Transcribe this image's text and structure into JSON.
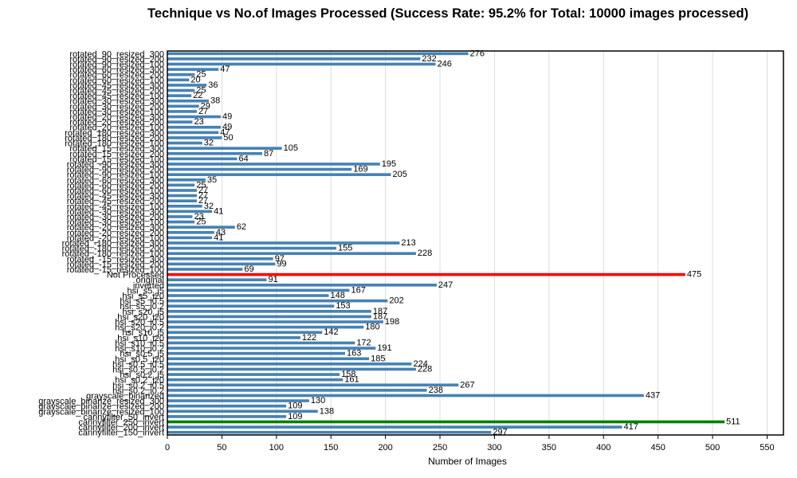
{
  "chart_data": {
    "type": "bar",
    "orientation": "horizontal",
    "title": "Technique vs No.of Images Processed (Success Rate: 95.2% for Total: 10000 images processed)",
    "xlabel": "Number of Images",
    "ylabel": "",
    "xlim": [
      0,
      565
    ],
    "xticks": [
      0,
      50,
      100,
      150,
      200,
      250,
      300,
      350,
      400,
      450,
      500,
      550
    ],
    "grid": "vertical",
    "default_color": "#4682b4",
    "highlight_colors": {
      "Not Processed": "#ff0000",
      "cannyfilter_250_invert": "#008000"
    },
    "categories": [
      "rotated_90_resized_300",
      "rotated_90_resized_200",
      "rotated_90_resized_100",
      "rotated_60_resized_300",
      "rotated_60_resized_200",
      "rotated_60_resized_100",
      "rotated_45_resized_300",
      "rotated_45_resized_200",
      "rotated_45_resized_100",
      "rotated_30_resized_300",
      "rotated_30_resized_200",
      "rotated_30_resized_100",
      "rotated_20_resized_300",
      "rotated_20_resized_200",
      "rotated_20_resized_100",
      "rotated_180_resized_300",
      "rotated_180_resized_200",
      "rotated_180_resized_100",
      "rotated_15_resized_300",
      "rotated_15_resized_200",
      "rotated_15_resized_100",
      "rotated_-90_resized_300",
      "rotated_-90_resized_200",
      "rotated_-90_resized_100",
      "rotated_-60_resized_300",
      "rotated_-60_resized_200",
      "rotated_-60_resized_100",
      "rotated_-45_resized_300",
      "rotated_-45_resized_200",
      "rotated_-45_resized_100",
      "rotated_-30_resized_300",
      "rotated_-30_resized_200",
      "rotated_-30_resized_100",
      "rotated_-20_resized_300",
      "rotated_-20_resized_200",
      "rotated_-20_resized_100",
      "rotated_-180_resized_300",
      "rotated_-180_resized_200",
      "rotated_-180_resized_100",
      "rotated_-15_resized_300",
      "rotated_-15_resized_200",
      "rotated_-15_resized_100",
      "Not Processed",
      "original",
      "inverted",
      "hsi_s5_i5",
      "hsi_s5_i20",
      "hsi_s5_i0.5",
      "hsi_s5_i0.2",
      "hsi_s20_i5",
      "hsi_s20_i20",
      "hsi_s20_i0.5",
      "hsi_s20_i0.2",
      "hsi_s10_i5",
      "hsi_s10_i20",
      "hsi_s10_i0.5",
      "hsi_s10_i0.2",
      "hsi_s0.5_i5",
      "hsi_s0.5_i20",
      "hsi_s0.5_i0.5",
      "hsi_s0.5_i0.2",
      "hsi_s0.2_i5",
      "hsi_s0.2_i20",
      "hsi_s0.2_i0.5",
      "hsi_s0.2_i0.2",
      "grayscale_binarized",
      "grayscale_binarize_resized_300",
      "grayscale_binarize_resized_200",
      "grayscale_binarize_resized_100",
      "cannyfilter_50_invert",
      "cannyfilter_250_invert",
      "cannyfilter_200_invert",
      "cannyfilter_150_invert"
    ],
    "values": [
      276,
      232,
      246,
      47,
      25,
      20,
      36,
      25,
      22,
      38,
      29,
      27,
      49,
      23,
      49,
      47,
      50,
      32,
      105,
      87,
      64,
      195,
      169,
      205,
      35,
      25,
      27,
      27,
      27,
      32,
      41,
      23,
      25,
      62,
      43,
      41,
      213,
      155,
      228,
      97,
      99,
      69,
      475,
      91,
      247,
      167,
      148,
      202,
      153,
      187,
      187,
      198,
      180,
      142,
      122,
      172,
      191,
      163,
      185,
      224,
      228,
      158,
      161,
      267,
      238,
      437,
      130,
      109,
      138,
      109,
      511,
      417,
      297
    ]
  }
}
